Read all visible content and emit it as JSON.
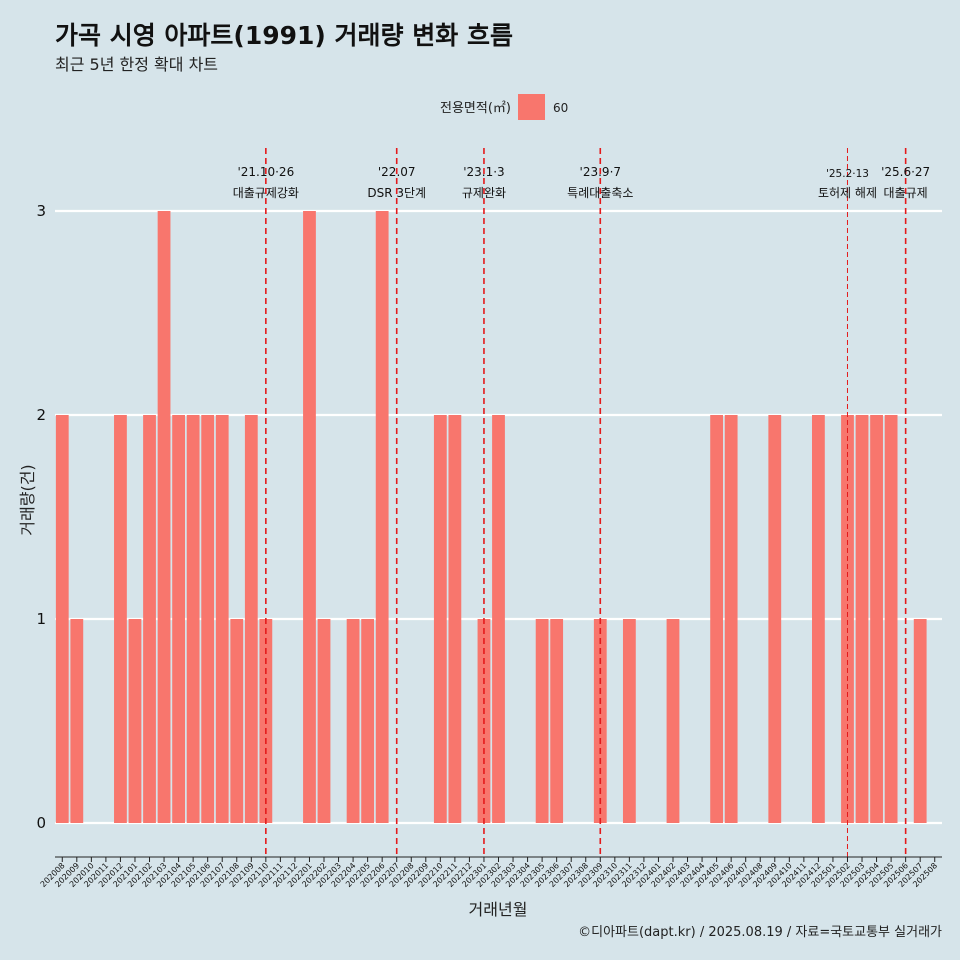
{
  "title": "가곡 시영 아파트(1991) 거래량 변화 흐름",
  "subtitle": "최근 5년 한정 확대 차트",
  "caption": "©디아파트(dapt.kr) / 2025.08.19 / 자료=국토교통부 실거래가",
  "colors": {
    "background": "#d6e4ea",
    "bar": "#f8766d",
    "event_line": "#e41a1c",
    "grid": "#ffffff"
  },
  "chart_data": {
    "type": "bar",
    "xlabel": "거래년월",
    "ylabel": "거래량(건)",
    "ylim": [
      0,
      3
    ],
    "yticks": [
      0,
      1,
      2,
      3
    ],
    "grid": true,
    "legend": {
      "title": "전용면적(㎡)",
      "position": "top-center",
      "entries": [
        {
          "label": "60",
          "color": "#f8766d"
        }
      ]
    },
    "categories": [
      "202008",
      "202009",
      "202010",
      "202011",
      "202012",
      "202101",
      "202102",
      "202103",
      "202104",
      "202105",
      "202106",
      "202107",
      "202108",
      "202109",
      "202110",
      "202111",
      "202112",
      "202201",
      "202202",
      "202203",
      "202204",
      "202205",
      "202206",
      "202207",
      "202208",
      "202209",
      "202210",
      "202211",
      "202212",
      "202301",
      "202302",
      "202303",
      "202304",
      "202305",
      "202306",
      "202307",
      "202308",
      "202309",
      "202310",
      "202311",
      "202312",
      "202401",
      "202402",
      "202403",
      "202404",
      "202405",
      "202406",
      "202407",
      "202408",
      "202409",
      "202410",
      "202411",
      "202412",
      "202501",
      "202502",
      "202503",
      "202504",
      "202505",
      "202506",
      "202507",
      "202508"
    ],
    "series": [
      {
        "name": "60",
        "values": [
          2,
          1,
          0,
          0,
          2,
          1,
          2,
          3,
          2,
          2,
          2,
          2,
          1,
          2,
          1,
          0,
          0,
          3,
          1,
          0,
          1,
          1,
          3,
          0,
          0,
          0,
          2,
          2,
          0,
          1,
          2,
          0,
          0,
          1,
          1,
          0,
          0,
          1,
          0,
          1,
          0,
          0,
          1,
          0,
          0,
          2,
          2,
          0,
          0,
          2,
          0,
          0,
          2,
          0,
          2,
          2,
          2,
          2,
          0,
          1,
          0
        ]
      }
    ],
    "annotations": [
      {
        "month": "202110",
        "date": "'21.10·26",
        "label": "대출규제강화",
        "style": "major"
      },
      {
        "month": "202207",
        "date": "'22.07",
        "label": "DSR 3단계",
        "style": "major"
      },
      {
        "month": "202301",
        "date": "'23.1·3",
        "label": "규제완화",
        "style": "major"
      },
      {
        "month": "202309",
        "date": "'23.9·7",
        "label": "특례대출축소",
        "style": "major"
      },
      {
        "month": "202502",
        "date": "'25.2·13",
        "label": "토허제 해제",
        "style": "minor"
      },
      {
        "month": "202506",
        "date": "'25.6·27",
        "label": "대출규제",
        "style": "major"
      }
    ]
  }
}
